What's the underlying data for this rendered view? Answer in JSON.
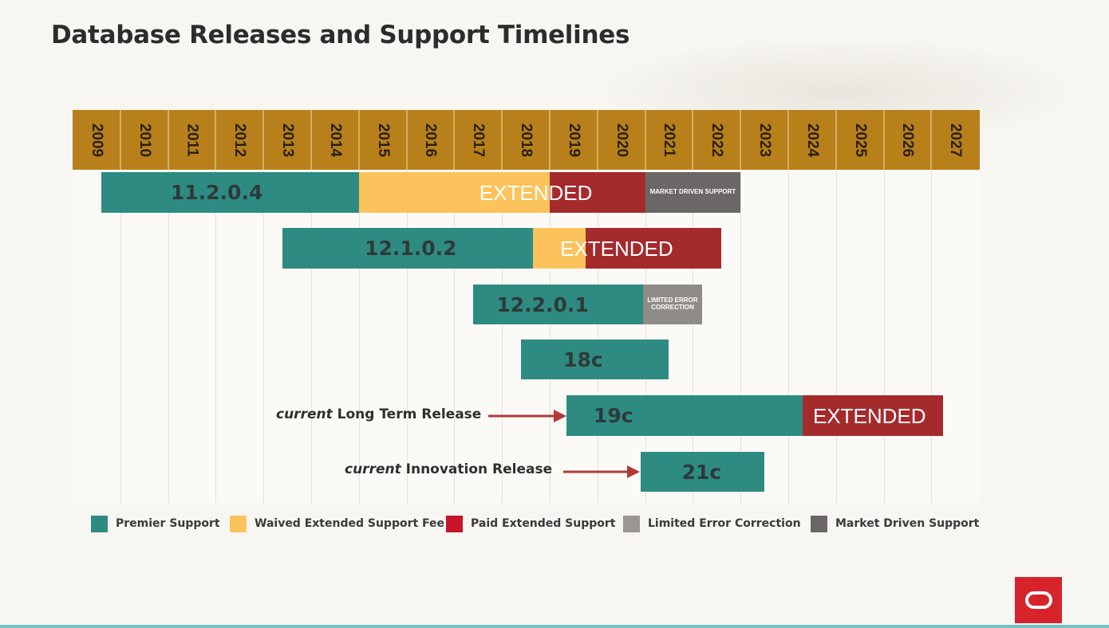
{
  "title": "Database Releases and Support Timelines",
  "colors": {
    "premier": "#2e8b82",
    "waived": "#fcc35c",
    "paid": "#a52a2c",
    "limited": "#8f8b88",
    "market": "#6b6766",
    "header": "#b8801a"
  },
  "years": [
    "2009",
    "2010",
    "2011",
    "2012",
    "2013",
    "2014",
    "2015",
    "2016",
    "2017",
    "2018",
    "2019",
    "2020",
    "2021",
    "2022",
    "2023",
    "2024",
    "2025",
    "2026",
    "2027"
  ],
  "releases": [
    {
      "name": "11.2.0.4",
      "segments": [
        {
          "type": "premier",
          "start": 2009.6,
          "end": 2015.0
        },
        {
          "type": "waived",
          "start": 2015.0,
          "end": 2019.0
        },
        {
          "type": "paid",
          "start": 2019.0,
          "end": 2021.0
        },
        {
          "type": "market",
          "start": 2021.0,
          "end": 2023.0
        }
      ],
      "ext_text": "EXTENDED",
      "small_text": "MARKET DRIVEN SUPPORT"
    },
    {
      "name": "12.1.0.2",
      "segments": [
        {
          "type": "premier",
          "start": 2013.4,
          "end": 2018.65
        },
        {
          "type": "waived",
          "start": 2018.65,
          "end": 2019.75
        },
        {
          "type": "paid",
          "start": 2019.75,
          "end": 2022.6
        }
      ],
      "ext_text": "EXTENDED",
      "small_text": ""
    },
    {
      "name": "12.2.0.1",
      "segments": [
        {
          "type": "premier",
          "start": 2017.4,
          "end": 2020.95
        },
        {
          "type": "limited",
          "start": 2020.95,
          "end": 2022.2
        }
      ],
      "ext_text": "",
      "small_text": "LIMITED ERROR CORRECTION"
    },
    {
      "name": "18c",
      "segments": [
        {
          "type": "premier",
          "start": 2018.4,
          "end": 2021.5
        }
      ],
      "ext_text": "",
      "small_text": ""
    },
    {
      "name": "19c",
      "segments": [
        {
          "type": "premier",
          "start": 2019.35,
          "end": 2024.3
        },
        {
          "type": "paid",
          "start": 2024.3,
          "end": 2027.25
        }
      ],
      "ext_text": "EXTENDED",
      "small_text": ""
    },
    {
      "name": "21c",
      "segments": [
        {
          "type": "premier",
          "start": 2020.9,
          "end": 2023.5
        }
      ],
      "ext_text": "",
      "small_text": ""
    }
  ],
  "annotations": [
    {
      "italic": "current",
      "text": " Long Term Release"
    },
    {
      "italic": "current",
      "text": " Innovation Release"
    }
  ],
  "legend": [
    {
      "label": "Premier Support",
      "color": "#2e8b82"
    },
    {
      "label": "Waived Extended Support Fee",
      "color": "#fcc35c"
    },
    {
      "label": "Paid Extended Support",
      "color": "#c7152a"
    },
    {
      "label": "Limited Error Correction",
      "color": "#9b9593"
    },
    {
      "label": "Market Driven Support",
      "color": "#6b6766"
    }
  ],
  "logo": "oracle-logo"
}
